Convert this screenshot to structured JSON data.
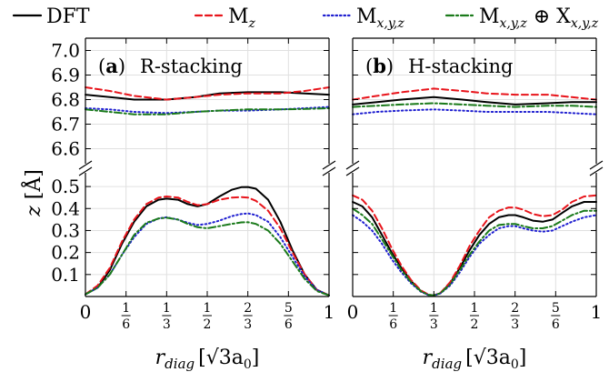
{
  "chart_data": [
    {
      "type": "line",
      "panel": "(a)",
      "panel_bold": "a",
      "title": "R-stacking",
      "xlabel": "r_diag [√3a₀]",
      "ylabel": "z [Å]",
      "x_ticks": [
        "0",
        "1/6",
        "1/3",
        "1/2",
        "2/3",
        "5/6",
        "1"
      ],
      "y_ticks_upper": [
        "6.6",
        "6.7",
        "6.8",
        "6.9",
        "7.0"
      ],
      "y_ticks_lower": [
        "0.1",
        "0.2",
        "0.3",
        "0.4",
        "0.5"
      ],
      "ylim_upper": [
        6.55,
        7.05
      ],
      "ylim_lower": [
        0.0,
        0.55
      ],
      "series": [
        {
          "name": "DFT",
          "color": "#000000",
          "style": "solid",
          "upper": {
            "x": [
              0,
              0.1,
              0.2,
              0.333,
              0.45,
              0.55,
              0.667,
              0.8,
              0.9,
              1.0
            ],
            "y": [
              6.82,
              6.81,
              6.8,
              6.8,
              6.81,
              6.825,
              6.83,
              6.83,
              6.825,
              6.82
            ]
          },
          "lower": {
            "x": [
              0,
              0.05,
              0.1,
              0.15,
              0.2,
              0.25,
              0.3,
              0.333,
              0.38,
              0.42,
              0.46,
              0.5,
              0.55,
              0.6,
              0.64,
              0.667,
              0.7,
              0.75,
              0.8,
              0.85,
              0.9,
              0.95,
              1.0
            ],
            "y": [
              0.01,
              0.04,
              0.12,
              0.24,
              0.34,
              0.41,
              0.44,
              0.445,
              0.44,
              0.42,
              0.41,
              0.42,
              0.455,
              0.485,
              0.497,
              0.498,
              0.49,
              0.44,
              0.34,
              0.21,
              0.1,
              0.03,
              0.005
            ]
          }
        },
        {
          "name": "M_z",
          "color": "#e8141b",
          "style": "dashed",
          "upper": {
            "x": [
              0,
              0.1,
              0.2,
              0.333,
              0.45,
              0.55,
              0.667,
              0.8,
              0.9,
              1.0
            ],
            "y": [
              6.85,
              6.835,
              6.815,
              6.8,
              6.81,
              6.82,
              6.825,
              6.825,
              6.835,
              6.85
            ]
          },
          "lower": {
            "x": [
              0,
              0.05,
              0.1,
              0.15,
              0.2,
              0.25,
              0.3,
              0.333,
              0.38,
              0.42,
              0.46,
              0.5,
              0.55,
              0.6,
              0.64,
              0.667,
              0.7,
              0.75,
              0.8,
              0.85,
              0.9,
              0.95,
              1.0
            ],
            "y": [
              0.01,
              0.05,
              0.13,
              0.25,
              0.35,
              0.42,
              0.45,
              0.455,
              0.45,
              0.43,
              0.415,
              0.42,
              0.44,
              0.45,
              0.452,
              0.45,
              0.435,
              0.39,
              0.31,
              0.2,
              0.1,
              0.03,
              0.005
            ]
          }
        },
        {
          "name": "M_{x,y,z}",
          "color": "#1f1fd0",
          "style": "dotted",
          "upper": {
            "x": [
              0,
              0.1,
              0.2,
              0.333,
              0.45,
              0.55,
              0.667,
              0.8,
              0.9,
              1.0
            ],
            "y": [
              6.765,
              6.76,
              6.75,
              6.745,
              6.75,
              6.755,
              6.755,
              6.76,
              6.765,
              6.77
            ]
          },
          "lower": {
            "x": [
              0,
              0.05,
              0.1,
              0.15,
              0.2,
              0.25,
              0.3,
              0.333,
              0.38,
              0.42,
              0.46,
              0.5,
              0.55,
              0.6,
              0.64,
              0.667,
              0.7,
              0.75,
              0.8,
              0.85,
              0.9,
              0.95,
              1.0
            ],
            "y": [
              0.01,
              0.04,
              0.1,
              0.19,
              0.27,
              0.33,
              0.355,
              0.36,
              0.35,
              0.335,
              0.325,
              0.33,
              0.345,
              0.365,
              0.375,
              0.378,
              0.37,
              0.34,
              0.27,
              0.18,
              0.09,
              0.03,
              0.005
            ]
          }
        },
        {
          "name": "M_{x,y,z} ⊕ X_{x,y,z}",
          "color": "#1a7a1a",
          "style": "dashdot",
          "upper": {
            "x": [
              0,
              0.1,
              0.2,
              0.333,
              0.45,
              0.55,
              0.667,
              0.8,
              0.9,
              1.0
            ],
            "y": [
              6.76,
              6.75,
              6.74,
              6.74,
              6.75,
              6.755,
              6.76,
              6.76,
              6.762,
              6.765
            ]
          },
          "lower": {
            "x": [
              0,
              0.05,
              0.1,
              0.15,
              0.2,
              0.25,
              0.3,
              0.333,
              0.38,
              0.42,
              0.46,
              0.5,
              0.55,
              0.6,
              0.64,
              0.667,
              0.7,
              0.75,
              0.8,
              0.85,
              0.9,
              0.95,
              1.0
            ],
            "y": [
              0.01,
              0.04,
              0.1,
              0.19,
              0.28,
              0.335,
              0.355,
              0.358,
              0.35,
              0.33,
              0.315,
              0.31,
              0.32,
              0.33,
              0.337,
              0.338,
              0.33,
              0.3,
              0.24,
              0.16,
              0.08,
              0.025,
              0.005
            ]
          }
        }
      ]
    },
    {
      "type": "line",
      "panel": "(b)",
      "panel_bold": "b",
      "title": "H-stacking",
      "xlabel": "r_diag [√3a₀]",
      "ylabel": "z [Å]",
      "x_ticks": [
        "0",
        "1/6",
        "1/3",
        "1/2",
        "2/3",
        "5/6",
        "1"
      ],
      "y_ticks_upper": [
        "6.6",
        "6.7",
        "6.8",
        "6.9",
        "7.0"
      ],
      "y_ticks_lower": [
        "0.1",
        "0.2",
        "0.3",
        "0.4",
        "0.5"
      ],
      "ylim_upper": [
        6.55,
        7.05
      ],
      "ylim_lower": [
        0.0,
        0.55
      ],
      "series": [
        {
          "name": "DFT",
          "color": "#000000",
          "style": "solid",
          "upper": {
            "x": [
              0,
              0.1,
              0.2,
              0.333,
              0.45,
              0.55,
              0.667,
              0.8,
              0.9,
              1.0
            ],
            "y": [
              6.78,
              6.79,
              6.8,
              6.81,
              6.8,
              6.79,
              6.78,
              6.785,
              6.79,
              6.79
            ]
          },
          "lower": {
            "x": [
              0,
              0.04,
              0.08,
              0.12,
              0.16,
              0.2,
              0.24,
              0.28,
              0.31,
              0.333,
              0.36,
              0.4,
              0.44,
              0.48,
              0.52,
              0.56,
              0.6,
              0.64,
              0.667,
              0.7,
              0.74,
              0.78,
              0.82,
              0.86,
              0.9,
              0.95,
              1.0
            ],
            "y": [
              0.43,
              0.41,
              0.36,
              0.28,
              0.2,
              0.13,
              0.07,
              0.025,
              0.008,
              0.005,
              0.015,
              0.06,
              0.13,
              0.21,
              0.28,
              0.33,
              0.36,
              0.37,
              0.37,
              0.36,
              0.345,
              0.34,
              0.35,
              0.38,
              0.41,
              0.43,
              0.43
            ]
          }
        },
        {
          "name": "M_z",
          "color": "#e8141b",
          "style": "dashed",
          "upper": {
            "x": [
              0,
              0.1,
              0.2,
              0.333,
              0.45,
              0.55,
              0.667,
              0.8,
              0.9,
              1.0
            ],
            "y": [
              6.8,
              6.815,
              6.83,
              6.845,
              6.835,
              6.825,
              6.82,
              6.82,
              6.81,
              6.8
            ]
          },
          "lower": {
            "x": [
              0,
              0.04,
              0.08,
              0.12,
              0.16,
              0.2,
              0.24,
              0.28,
              0.31,
              0.333,
              0.36,
              0.4,
              0.44,
              0.48,
              0.52,
              0.56,
              0.6,
              0.64,
              0.667,
              0.7,
              0.74,
              0.78,
              0.82,
              0.86,
              0.9,
              0.95,
              1.0
            ],
            "y": [
              0.46,
              0.44,
              0.39,
              0.31,
              0.22,
              0.14,
              0.075,
              0.028,
              0.009,
              0.005,
              0.016,
              0.065,
              0.14,
              0.23,
              0.3,
              0.36,
              0.39,
              0.405,
              0.405,
              0.395,
              0.375,
              0.365,
              0.37,
              0.395,
              0.43,
              0.455,
              0.46
            ]
          }
        },
        {
          "name": "M_{x,y,z}",
          "color": "#1f1fd0",
          "style": "dotted",
          "upper": {
            "x": [
              0,
              0.1,
              0.2,
              0.333,
              0.45,
              0.55,
              0.667,
              0.8,
              0.9,
              1.0
            ],
            "y": [
              6.74,
              6.75,
              6.755,
              6.76,
              6.755,
              6.75,
              6.75,
              6.75,
              6.745,
              6.74
            ]
          },
          "lower": {
            "x": [
              0,
              0.04,
              0.08,
              0.12,
              0.16,
              0.2,
              0.24,
              0.28,
              0.31,
              0.333,
              0.36,
              0.4,
              0.44,
              0.48,
              0.52,
              0.56,
              0.6,
              0.64,
              0.667,
              0.7,
              0.74,
              0.78,
              0.82,
              0.86,
              0.9,
              0.95,
              1.0
            ],
            "y": [
              0.37,
              0.34,
              0.3,
              0.24,
              0.17,
              0.11,
              0.06,
              0.022,
              0.007,
              0.005,
              0.014,
              0.05,
              0.11,
              0.18,
              0.24,
              0.28,
              0.31,
              0.32,
              0.32,
              0.31,
              0.3,
              0.295,
              0.3,
              0.32,
              0.34,
              0.36,
              0.37
            ]
          }
        },
        {
          "name": "M_{x,y,z} ⊕ X_{x,y,z}",
          "color": "#1a7a1a",
          "style": "dashdot",
          "upper": {
            "x": [
              0,
              0.1,
              0.2,
              0.333,
              0.45,
              0.55,
              0.667,
              0.8,
              0.9,
              1.0
            ],
            "y": [
              6.77,
              6.775,
              6.78,
              6.785,
              6.78,
              6.775,
              6.77,
              6.775,
              6.775,
              6.77
            ]
          },
          "lower": {
            "x": [
              0,
              0.04,
              0.08,
              0.12,
              0.16,
              0.2,
              0.24,
              0.28,
              0.31,
              0.333,
              0.36,
              0.4,
              0.44,
              0.48,
              0.52,
              0.56,
              0.6,
              0.64,
              0.667,
              0.7,
              0.74,
              0.78,
              0.82,
              0.86,
              0.9,
              0.95,
              1.0
            ],
            "y": [
              0.4,
              0.37,
              0.33,
              0.26,
              0.19,
              0.12,
              0.065,
              0.024,
              0.008,
              0.005,
              0.015,
              0.055,
              0.12,
              0.19,
              0.25,
              0.3,
              0.325,
              0.33,
              0.33,
              0.32,
              0.31,
              0.31,
              0.32,
              0.345,
              0.37,
              0.39,
              0.39
            ]
          }
        }
      ]
    }
  ],
  "legend": [
    {
      "label": "DFT",
      "color": "#000000",
      "style": "solid"
    },
    {
      "label": "M",
      "sub": "z",
      "color": "#e8141b",
      "style": "dashed"
    },
    {
      "label": "M",
      "sub": "x,y,z",
      "color": "#1f1fd0",
      "style": "dotted"
    },
    {
      "label": "M",
      "sub": "x,y,z",
      "mid": " ⊕ X",
      "sub2": "x,y,z",
      "color": "#1a7a1a",
      "style": "dashdot"
    }
  ],
  "axis_text": {
    "ylabel_main": "z",
    "ylabel_unit": "[Å]",
    "xlabel_main": "r",
    "xlabel_sub": "diag",
    "xlabel_unit": "[√3a",
    "xlabel_unit_sub": "0",
    "xlabel_close": "]"
  }
}
